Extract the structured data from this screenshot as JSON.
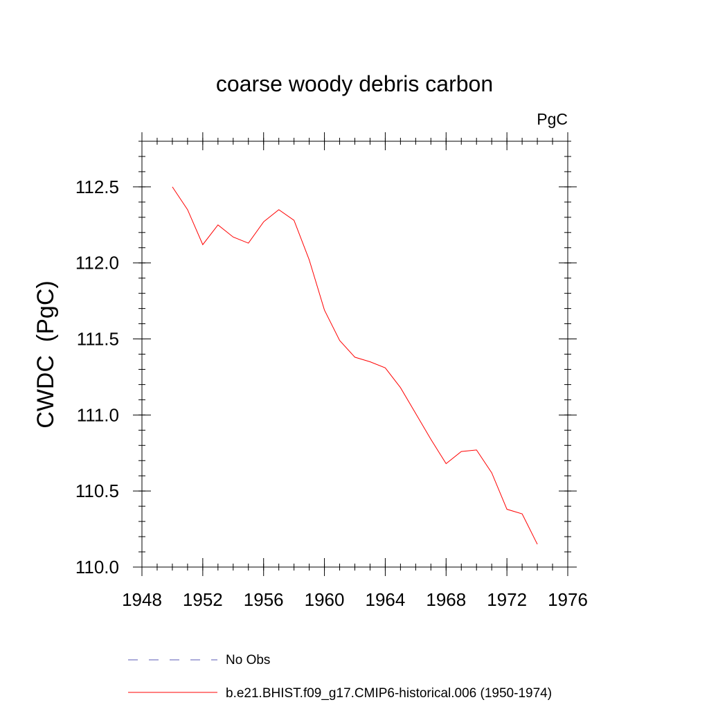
{
  "chart_data": {
    "type": "line",
    "title": "coarse woody debris carbon",
    "units_label": "PgC",
    "ylabel": "CWDC  (PgC)",
    "xlabel": "",
    "xlim": [
      1948,
      1976
    ],
    "ylim": [
      110.0,
      112.8
    ],
    "x_ticks": [
      1948,
      1952,
      1956,
      1960,
      1964,
      1968,
      1972,
      1976
    ],
    "y_ticks": [
      110.0,
      110.5,
      111.0,
      111.5,
      112.0,
      112.5
    ],
    "x_tick_labels": [
      "1948",
      "1952",
      "1956",
      "1960",
      "1964",
      "1968",
      "1972",
      "1976"
    ],
    "y_tick_labels": [
      "110.0",
      "110.5",
      "111.0",
      "111.5",
      "112.0",
      "112.5"
    ],
    "x_minor_step": 1,
    "y_minor_step": 0.1,
    "grid": false,
    "legend_position": "bottom",
    "series": [
      {
        "name": "b.e21.BHIST.f09_g17.CMIP6-historical.006 (1950-1974)",
        "color": "#ff0000",
        "style": "solid",
        "x": [
          1950,
          1951,
          1952,
          1953,
          1954,
          1955,
          1956,
          1957,
          1958,
          1959,
          1960,
          1961,
          1962,
          1963,
          1964,
          1965,
          1966,
          1967,
          1968,
          1969,
          1970,
          1971,
          1972,
          1973,
          1974
        ],
        "values": [
          112.5,
          112.35,
          112.12,
          112.25,
          112.17,
          112.13,
          112.27,
          112.35,
          112.28,
          112.02,
          111.69,
          111.49,
          111.38,
          111.35,
          111.31,
          111.18,
          111.01,
          110.84,
          110.68,
          110.76,
          110.77,
          110.62,
          110.38,
          110.35,
          110.15
        ]
      },
      {
        "name": "No Obs",
        "color": "#5a5ab4",
        "style": "dashed",
        "x": [],
        "values": []
      }
    ]
  }
}
